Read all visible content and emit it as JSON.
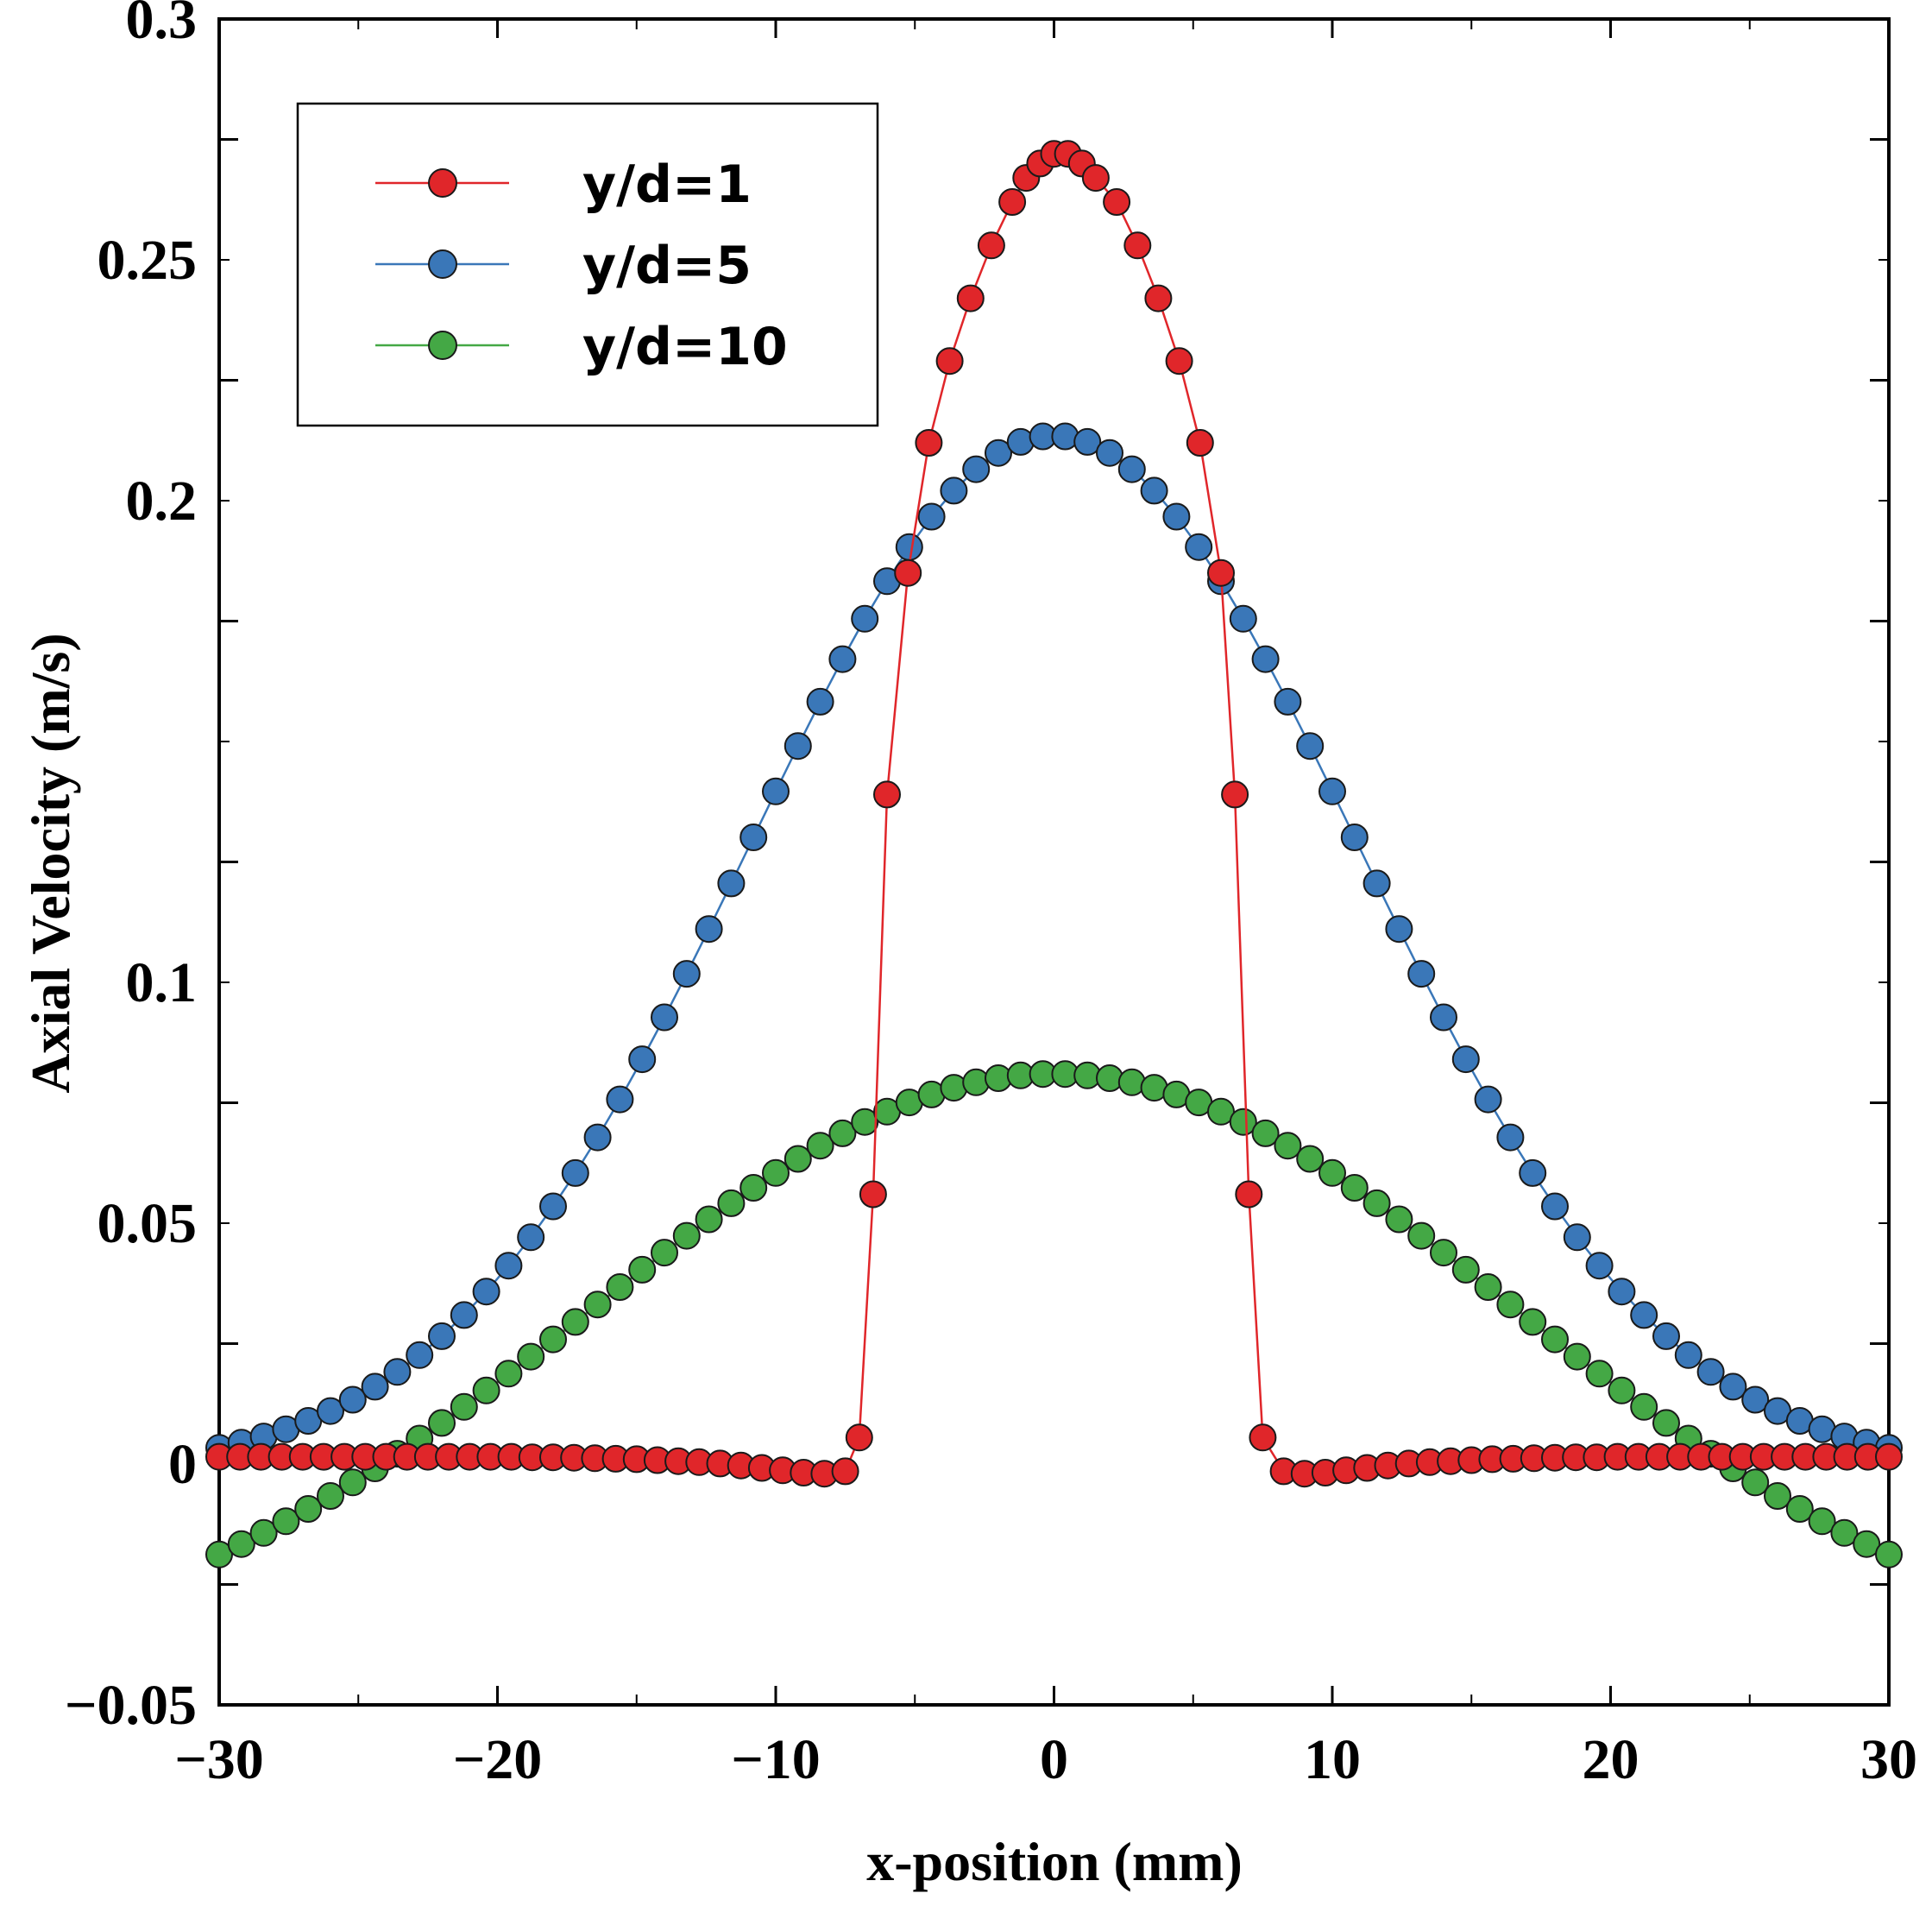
{
  "chart_data": {
    "type": "line",
    "title": "",
    "xlabel": "x-position (mm)",
    "ylabel": "Axial Velocity (m/s)",
    "xlim": [
      -30,
      30
    ],
    "ylim": [
      -0.05,
      0.3
    ],
    "x_ticks": [
      -30,
      -20,
      -10,
      0,
      10,
      20,
      30
    ],
    "x_tick_labels": [
      "−30",
      "−20",
      "−10",
      "0",
      "10",
      "20",
      "30"
    ],
    "y_ticks": [
      -0.05,
      0,
      0.05,
      0.1,
      0.2,
      0.25,
      0.3
    ],
    "y_tick_labels": [
      "−0.05",
      "0",
      "0.05",
      "0.1",
      "0.2",
      "0.25",
      "0.3"
    ],
    "grid": false,
    "legend_position": "top-left",
    "series": [
      {
        "name": "y/d=1",
        "color": "#e0262a",
        "x": [
          -30,
          -29.25,
          -28.5,
          -27.75,
          -27,
          -26.25,
          -25.5,
          -24.75,
          -24,
          -23.25,
          -22.5,
          -21.75,
          -21,
          -20.25,
          -19.5,
          -18.75,
          -18,
          -17.25,
          -16.5,
          -15.75,
          -15,
          -14.25,
          -13.5,
          -12.75,
          -12,
          -11.25,
          -10.5,
          -9.75,
          -9,
          -8.25,
          -7.5,
          -7,
          -6.5,
          -6,
          -5.25,
          -4.5,
          -3.75,
          -3,
          -2.25,
          -1.5,
          -1,
          -0.5,
          0,
          0.5,
          1,
          1.5,
          2.25,
          3,
          3.75,
          4.5,
          5.25,
          6,
          6.5,
          7,
          7.5,
          8.25,
          9,
          9.75,
          10.5,
          11.25,
          12,
          12.75,
          13.5,
          14.25,
          15,
          15.75,
          16.5,
          17.25,
          18,
          18.75,
          19.5,
          20.25,
          21,
          21.75,
          22.5,
          23.25,
          24,
          24.75,
          25.5,
          26.25,
          27,
          27.75,
          28.5,
          29.25,
          30
        ],
        "y": [
          0.0015,
          0.0015,
          0.0015,
          0.0015,
          0.0015,
          0.0015,
          0.0015,
          0.0015,
          0.0015,
          0.0015,
          0.0015,
          0.0015,
          0.0015,
          0.0015,
          0.0015,
          0.0014,
          0.0014,
          0.0013,
          0.0012,
          0.0011,
          0.001,
          0.0008,
          0.0006,
          0.0004,
          0.0001,
          -0.0003,
          -0.0008,
          -0.0013,
          -0.0018,
          -0.002,
          -0.0015,
          0.0055,
          0.056,
          0.139,
          0.185,
          0.212,
          0.229,
          0.242,
          0.253,
          0.262,
          0.267,
          0.27,
          0.272,
          0.272,
          0.27,
          0.267,
          0.262,
          0.253,
          0.242,
          0.229,
          0.212,
          0.185,
          0.139,
          0.056,
          0.0055,
          -0.0015,
          -0.002,
          -0.0018,
          -0.0013,
          -0.0008,
          -0.0003,
          0.0001,
          0.0004,
          0.0006,
          0.0008,
          0.001,
          0.0011,
          0.0012,
          0.0013,
          0.0014,
          0.0014,
          0.0015,
          0.0015,
          0.0015,
          0.0015,
          0.0015,
          0.0015,
          0.0015,
          0.0015,
          0.0015,
          0.0015,
          0.0015,
          0.0015,
          0.0015,
          0.0015
        ]
      },
      {
        "name": "y/d=5",
        "color": "#3a77b8",
        "gaussian_model": {
          "amplitude": 0.215,
          "sigma_mm": 10.9,
          "offset": -0.0015
        },
        "x_start": -30,
        "x_end": 30,
        "x_step": 0.8
      },
      {
        "name": "y/d=10",
        "color": "#44a845",
        "gaussian_model": {
          "amplitude": 0.124,
          "sigma_mm": 16.6,
          "offset": -0.043
        },
        "x_start": -30,
        "x_end": 30,
        "x_step": 0.8
      }
    ]
  }
}
